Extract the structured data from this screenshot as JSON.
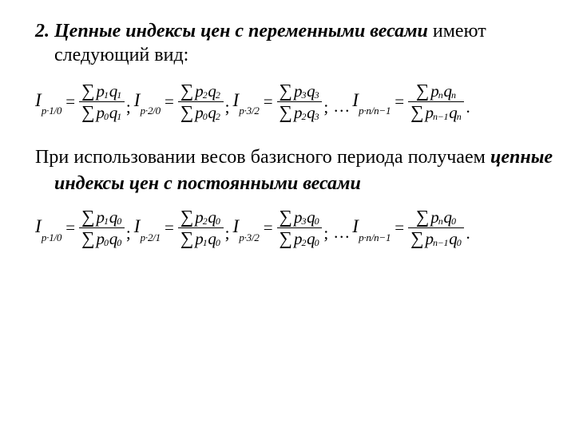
{
  "para1": {
    "num": "2.",
    "lead": " Цепные индексы цен с переменными весами",
    "rest": " имеют следующий вид:"
  },
  "para2": {
    "t1": "При использовании весов базисного периода получаем ",
    "em": "цепные индексы цен с постоянными весами"
  },
  "f1": {
    "terms": [
      {
        "lhs_sub": "p·1/0",
        "num_p": "1",
        "num_q": "1",
        "den_p": "0",
        "den_q": "1",
        "after": ";"
      },
      {
        "lhs_sub": "p·2/0",
        "num_p": "2",
        "num_q": "2",
        "den_p": "0",
        "den_q": "2",
        "after": ";"
      },
      {
        "lhs_sub": "p·3/2",
        "num_p": "3",
        "num_q": "3",
        "den_p": "2",
        "den_q": "3",
        "after": ";"
      },
      {
        "dots": "…"
      },
      {
        "lhs_sub": "p·n/n−1",
        "num_p": "n",
        "num_q": "n",
        "den_p": "n−1",
        "den_q": "n",
        "after": "."
      }
    ]
  },
  "f2": {
    "terms": [
      {
        "lhs_sub": "p·1/0",
        "num_p": "1",
        "num_q": "0",
        "den_p": "0",
        "den_q": "0",
        "after": ";"
      },
      {
        "lhs_sub": "p·2/1",
        "num_p": "2",
        "num_q": "0",
        "den_p": "1",
        "den_q": "0",
        "after": ";"
      },
      {
        "lhs_sub": "p·3/2",
        "num_p": "3",
        "num_q": "0",
        "den_p": "2",
        "den_q": "0",
        "after": ";"
      },
      {
        "dots": "…"
      },
      {
        "lhs_sub": "p·n/n−1",
        "num_p": "n",
        "num_q": "0",
        "den_p": "n−1",
        "den_q": "0",
        "after": "."
      }
    ]
  },
  "sym": {
    "I": "I",
    "sigma": "∑",
    "p": "p",
    "q": "q",
    "eq": "="
  }
}
